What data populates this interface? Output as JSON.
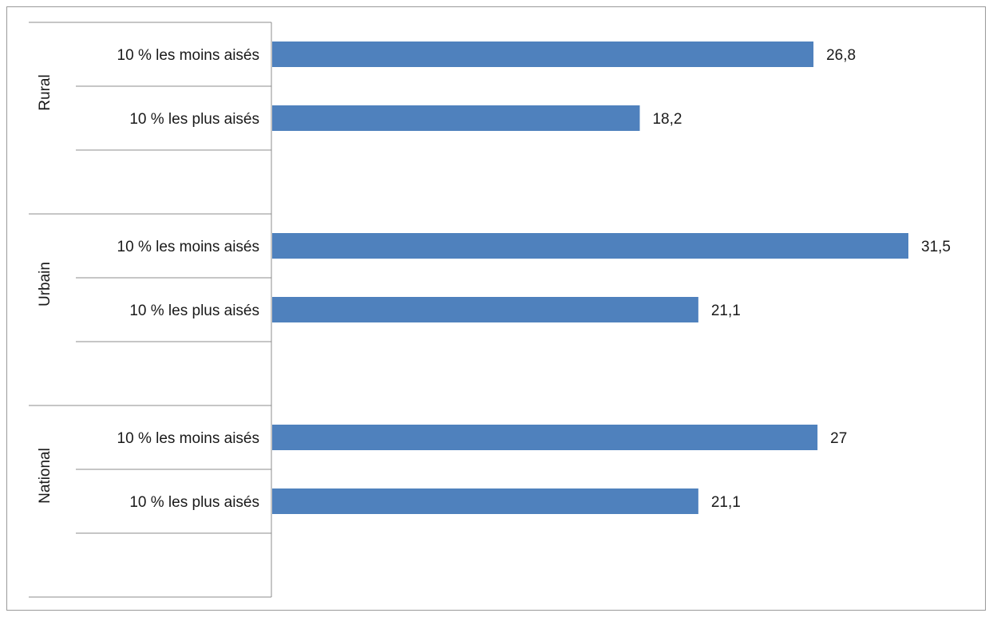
{
  "chart_data": {
    "type": "bar",
    "orientation": "horizontal",
    "title": "",
    "xlabel": "",
    "ylabel": "",
    "bar_color": "#4F81BD",
    "grid": false,
    "legend": "none",
    "xlim": [
      0,
      35
    ],
    "groups": [
      {
        "name": "Rural",
        "bars": [
          {
            "label": "10 % les moins aisés",
            "value": 26.8,
            "value_label": "26,8"
          },
          {
            "label": "10 % les plus aisés",
            "value": 18.2,
            "value_label": "18,2"
          }
        ]
      },
      {
        "name": "Urbain",
        "bars": [
          {
            "label": "10 % les moins aisés",
            "value": 31.5,
            "value_label": "31,5"
          },
          {
            "label": "10 % les plus aisés",
            "value": 21.1,
            "value_label": "21,1"
          }
        ]
      },
      {
        "name": "National",
        "bars": [
          {
            "label": "10 % les moins aisés",
            "value": 27,
            "value_label": "27"
          },
          {
            "label": "10 % les plus aisés",
            "value": 21.1,
            "value_label": "21,1"
          }
        ]
      }
    ]
  }
}
